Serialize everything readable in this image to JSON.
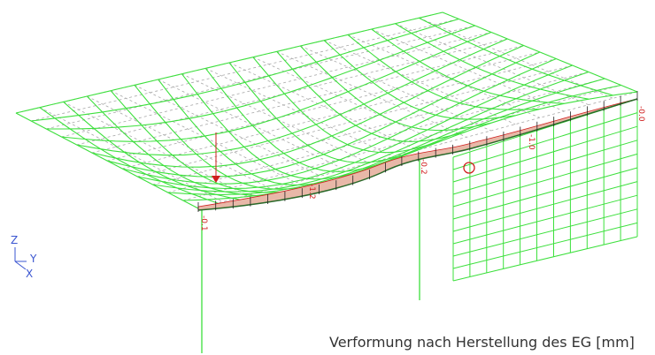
{
  "caption": "Verformung nach Herstellung des EG [mm]",
  "axes": {
    "z": "Z",
    "y": "Y",
    "x": "X"
  },
  "value_labels": [
    "-0.1",
    "-1.2",
    "-0.2",
    "-1.0",
    "-0.0"
  ],
  "colors": {
    "mesh": "#3de03d",
    "undeformed": "#a8a8a8",
    "deflection_fill": "#e8b8a8",
    "deflection_line": "#2a6a2a",
    "marker": "#d02020",
    "axis": "#3a55d0"
  },
  "icons": {
    "load_arrow": "down-arrow-icon",
    "support_marker": "circle-icon"
  }
}
